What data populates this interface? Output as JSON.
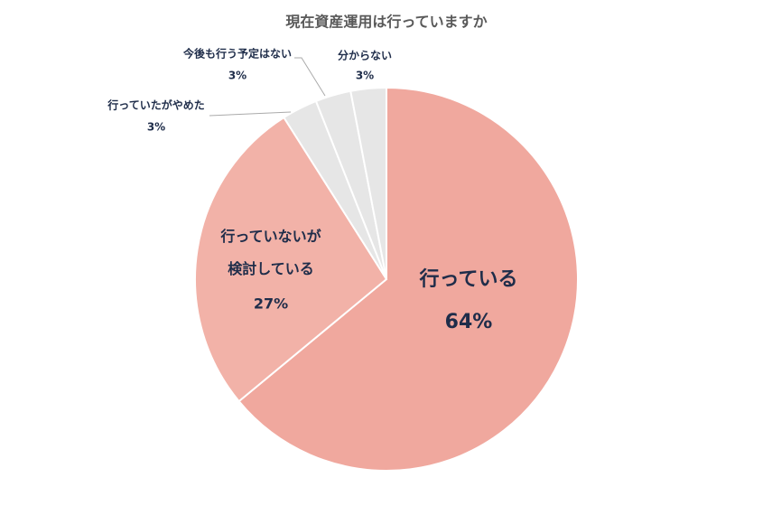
{
  "chart_data": {
    "type": "pie",
    "title": "現在資産運用は行っていますか",
    "categories": [
      "行っている",
      "行っていないが\n検討している",
      "行っていたがやめた",
      "今後も行う予定はない",
      "分からない"
    ],
    "values": [
      64,
      27,
      3,
      3,
      3
    ],
    "value_labels": [
      "64%",
      "27%",
      "3%",
      "3%",
      "3%"
    ],
    "colors": [
      "#f0a89e",
      "#f2b2a8",
      "#e6e6e6",
      "#e6e6e6",
      "#e6e6e6"
    ]
  }
}
